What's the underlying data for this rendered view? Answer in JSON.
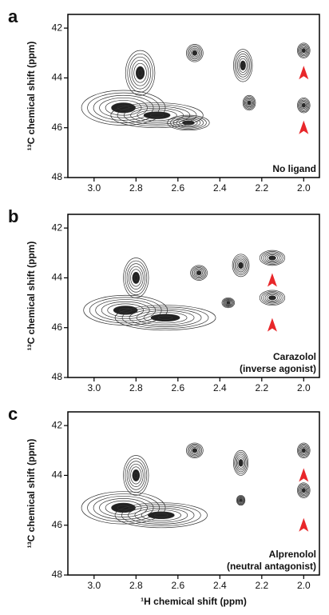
{
  "chart_data": [
    {
      "type": "contour",
      "panel": "a",
      "annotation": [
        "No ligand"
      ],
      "y_label": "¹³C chemical shift (ppm)",
      "xlim": [
        3.125,
        1.925
      ],
      "xticks": [
        {
          "value": 3,
          "label": "3.0"
        },
        2.8,
        2.6,
        2.4,
        2.2,
        {
          "value": 2,
          "label": "2.0"
        }
      ],
      "ylim": [
        41.45,
        48
      ],
      "yticks": [
        42,
        44,
        46,
        48
      ],
      "peak_x": [
        2.86,
        2.7,
        2.55,
        2.78,
        2.29,
        2.26,
        2.0,
        2.0,
        2.52
      ],
      "peak_y": [
        45.2,
        45.5,
        45.8,
        43.8,
        43.5,
        45.0,
        42.9,
        45.1,
        43.0
      ],
      "peak_wx": [
        0.2,
        0.22,
        0.1,
        0.07,
        0.045,
        0.03,
        0.03,
        0.03,
        0.04
      ],
      "peak_wy": [
        0.7,
        0.5,
        0.3,
        0.9,
        0.65,
        0.3,
        0.3,
        0.3,
        0.35
      ],
      "arrows_x": [
        2.0,
        2.0
      ],
      "arrows_y": [
        43.8,
        46.0
      ],
      "arrow_color": "#e8272a"
    },
    {
      "type": "contour",
      "panel": "b",
      "annotation": [
        "Carazolol",
        "(inverse agonist)"
      ],
      "y_label": "¹³C chemical shift (ppm)",
      "xlim": [
        3.125,
        1.925
      ],
      "xticks": [
        {
          "value": 3,
          "label": "3.0"
        },
        2.8,
        2.6,
        2.4,
        2.2,
        {
          "value": 2,
          "label": "2.0"
        }
      ],
      "ylim": [
        41.45,
        48
      ],
      "yticks": [
        42,
        44,
        46,
        48
      ],
      "peak_x": [
        2.85,
        2.66,
        2.8,
        2.3,
        2.15,
        2.15,
        2.36,
        2.5
      ],
      "peak_y": [
        45.3,
        45.6,
        44.0,
        43.5,
        43.2,
        44.8,
        45.0,
        43.8
      ],
      "peak_wx": [
        0.2,
        0.24,
        0.06,
        0.04,
        0.06,
        0.06,
        0.03,
        0.04
      ],
      "peak_wy": [
        0.6,
        0.5,
        0.8,
        0.45,
        0.3,
        0.3,
        0.2,
        0.3
      ],
      "arrows_x": [
        2.15,
        2.15
      ],
      "arrows_y": [
        44.1,
        45.9
      ],
      "arrow_color": "#e8272a"
    },
    {
      "type": "contour",
      "panel": "c",
      "annotation": [
        "Alprenolol",
        "(neutral antagonist)"
      ],
      "y_label": "¹³C chemical shift (ppm)",
      "x_label": "¹H chemical shift (ppm)",
      "xlim": [
        3.125,
        1.925
      ],
      "xticks": [
        {
          "value": 3,
          "label": "3.0"
        },
        2.8,
        2.6,
        2.4,
        2.2,
        {
          "value": 2,
          "label": "2.0"
        }
      ],
      "ylim": [
        41.45,
        48
      ],
      "yticks": [
        42,
        44,
        46,
        48
      ],
      "peak_x": [
        2.86,
        2.68,
        2.8,
        2.3,
        2.3,
        2.0,
        2.0,
        2.52
      ],
      "peak_y": [
        45.3,
        45.6,
        44.0,
        43.5,
        45.0,
        43.0,
        44.6,
        43.0
      ],
      "peak_wx": [
        0.2,
        0.22,
        0.06,
        0.035,
        0.02,
        0.03,
        0.03,
        0.04
      ],
      "peak_wy": [
        0.65,
        0.5,
        0.8,
        0.5,
        0.2,
        0.3,
        0.3,
        0.3
      ],
      "arrows_x": [
        2.0,
        2.0
      ],
      "arrows_y": [
        44.0,
        46.0
      ],
      "arrow_color": "#e8272a"
    }
  ]
}
